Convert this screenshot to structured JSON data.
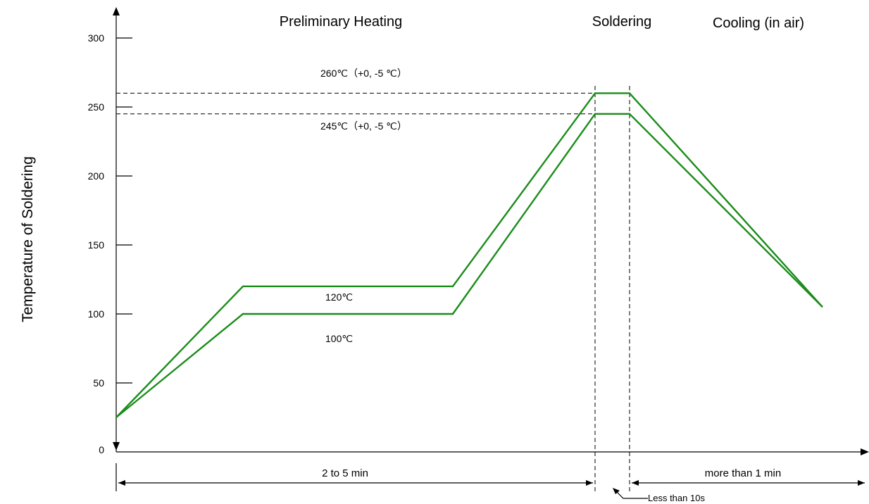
{
  "chart_data": {
    "type": "line",
    "ylabel": "Temperature of Soldering",
    "y_ticks": [
      0,
      50,
      100,
      150,
      200,
      250,
      300
    ],
    "ylim": [
      0,
      300
    ],
    "phases": [
      "Preliminary Heating",
      "Soldering",
      "Cooling (in air)"
    ],
    "series": [
      {
        "points": [
          [
            0,
            25
          ],
          [
            1,
            120
          ],
          [
            2,
            120
          ],
          [
            3,
            260
          ],
          [
            4,
            260
          ],
          [
            5,
            105
          ]
        ]
      },
      {
        "points": [
          [
            0,
            25
          ],
          [
            1,
            100
          ],
          [
            2,
            100
          ],
          [
            3,
            245
          ],
          [
            4,
            245
          ],
          [
            5,
            105
          ]
        ]
      }
    ],
    "annotations": {
      "peak_high": "260℃（+0, -5 ℃）",
      "peak_low": "245℃（+0, -5 ℃）",
      "preheat_high": "120℃",
      "preheat_low": "100℃"
    },
    "durations": {
      "preheat": "2 to 5 min",
      "soldering": "Less than 10s",
      "cooling": "more than 1 min"
    },
    "colors": {
      "profile": "#1a8c1a",
      "axis": "#000000"
    }
  }
}
